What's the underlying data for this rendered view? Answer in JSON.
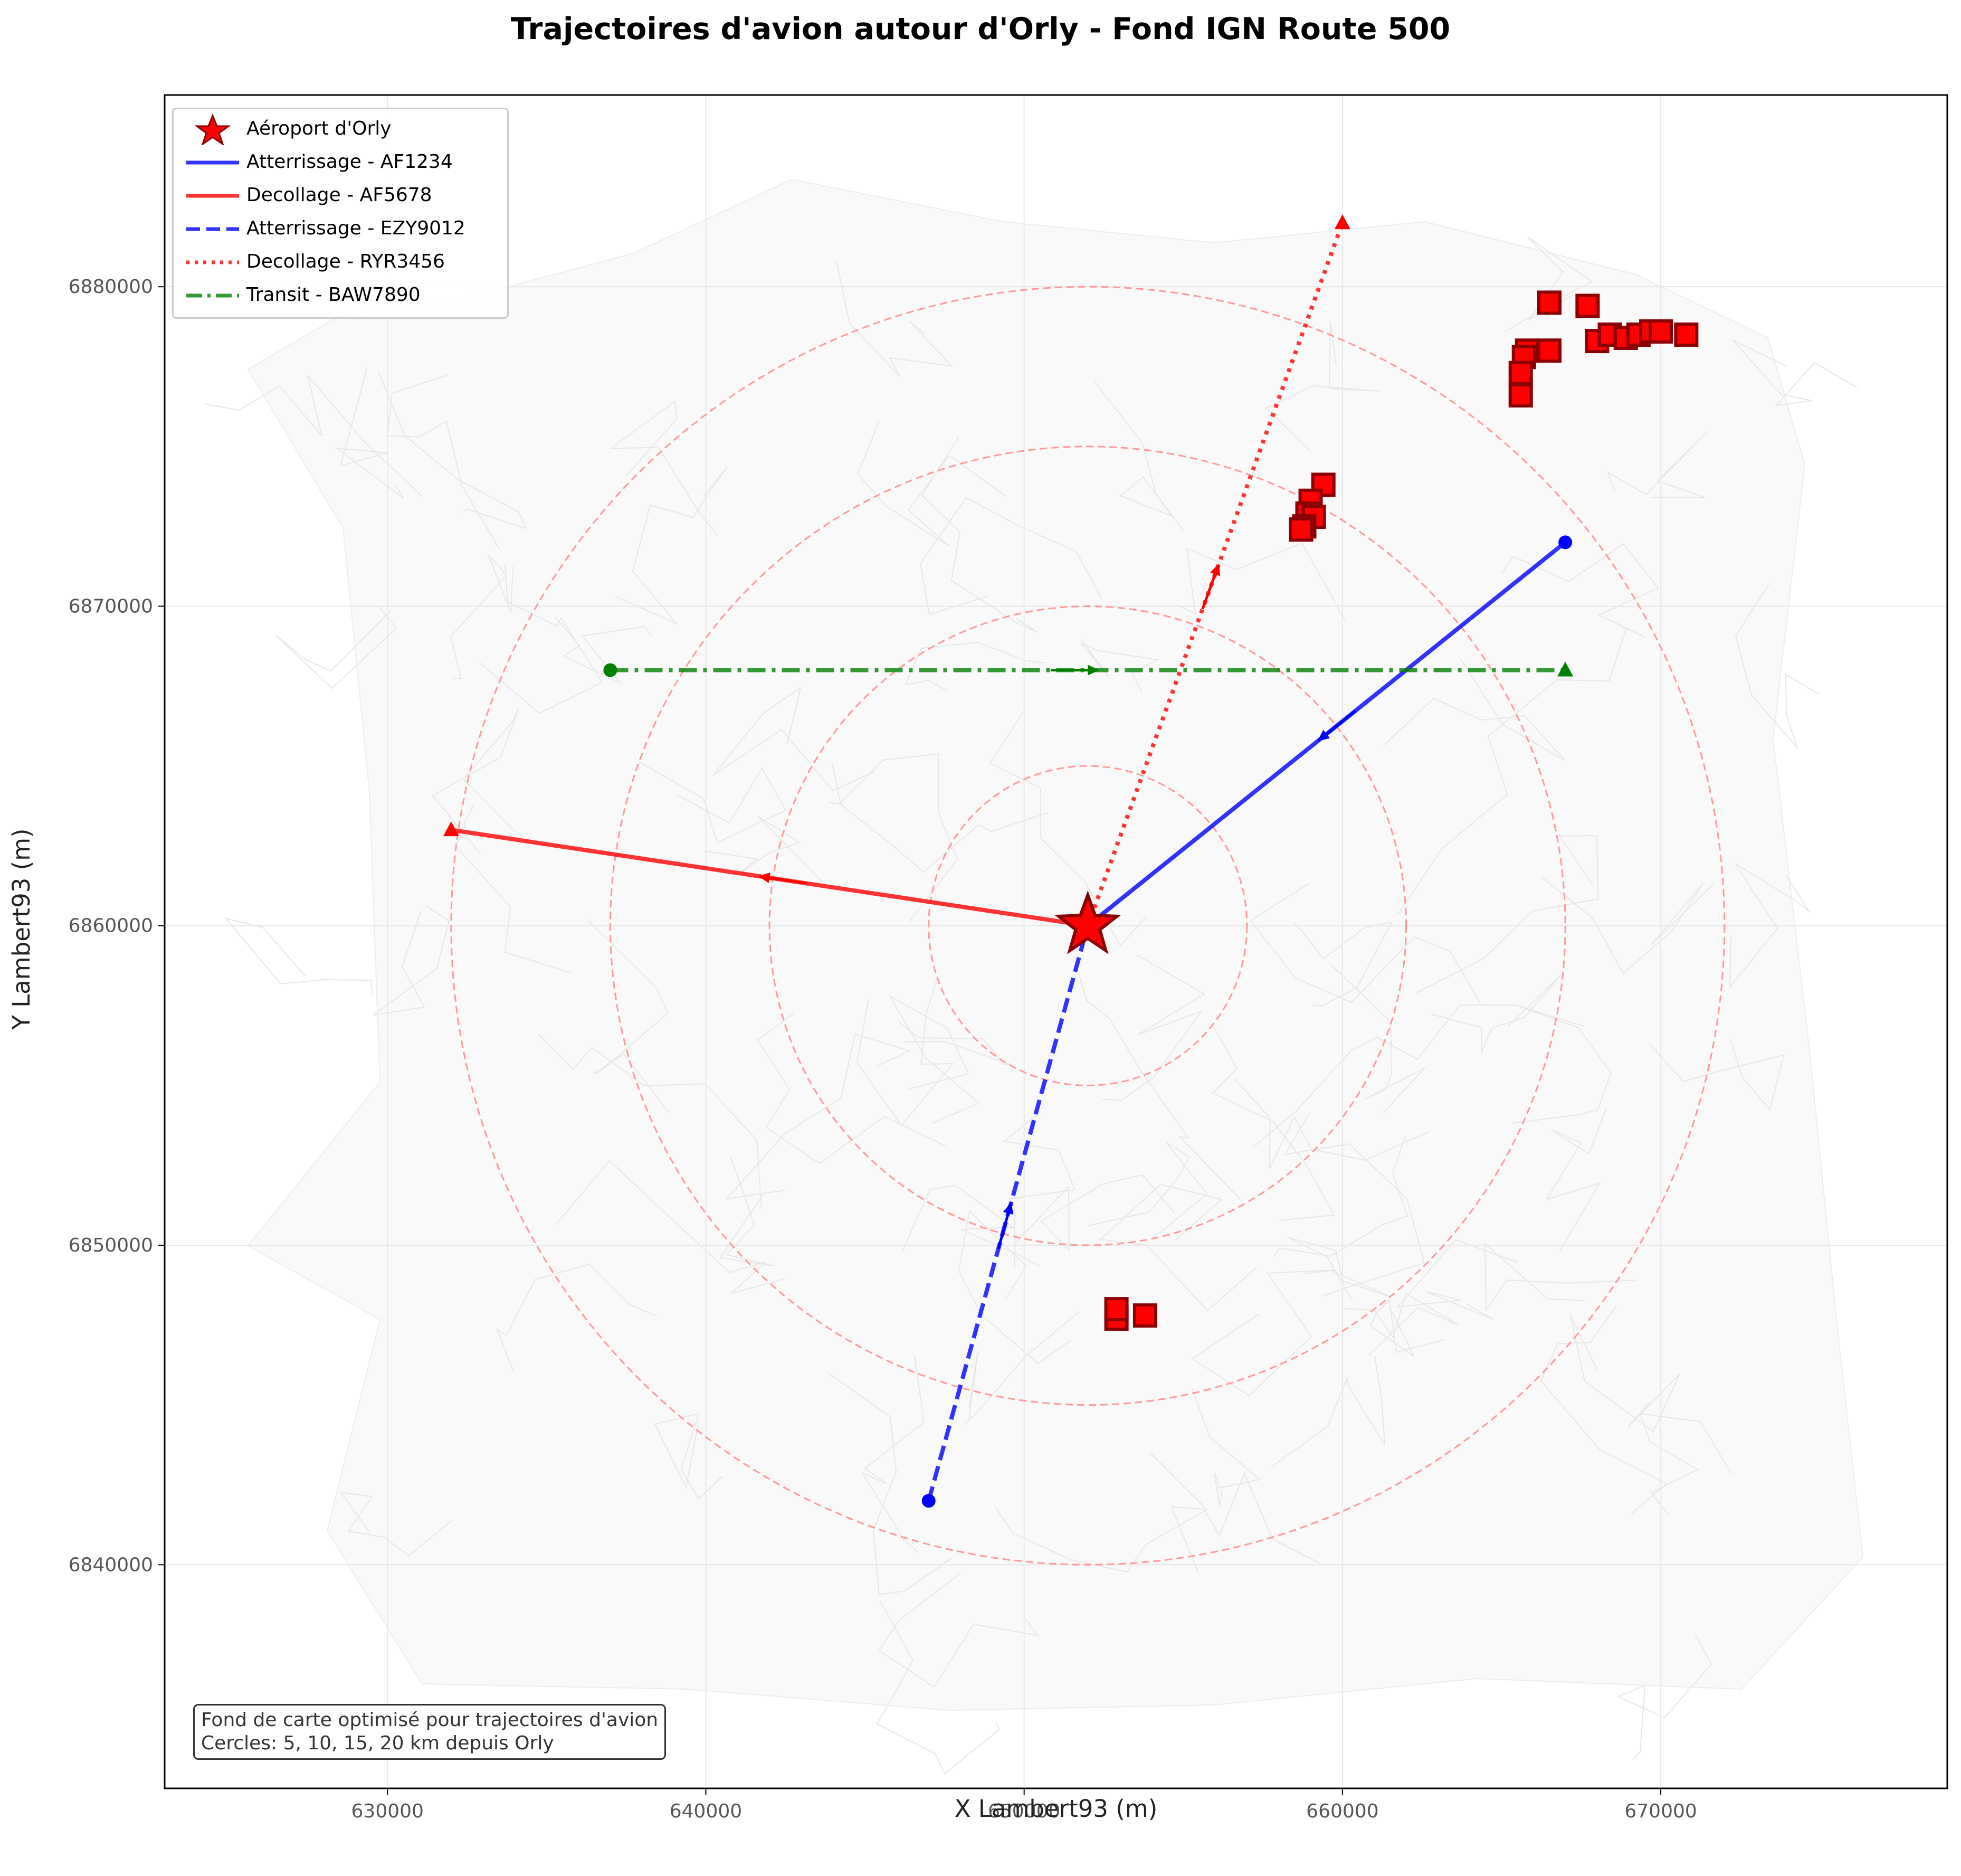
{
  "title": "Trajectoires d'avion autour d'Orly - Fond IGN Route 500",
  "xlabel": "X Lambert93 (m)",
  "ylabel": "Y Lambert93 (m)",
  "note": {
    "line1": "Fond de carte optimisé pour trajectoires d'avion",
    "line2": "Cercles: 5, 10, 15, 20 km depuis Orly"
  },
  "legend": {
    "placement": "upper-left",
    "entries": [
      {
        "label": "Aéroport d'Orly",
        "color": "#ff0000",
        "style": "star"
      },
      {
        "label": "Atterrissage - AF1234",
        "color": "#0000ff",
        "style": "solid"
      },
      {
        "label": "Decollage - AF5678",
        "color": "#ff0000",
        "style": "solid"
      },
      {
        "label": "Atterrissage - EZY9012",
        "color": "#0000ff",
        "style": "dashed"
      },
      {
        "label": "Decollage - RYR3456",
        "color": "#ff0000",
        "style": "dotted"
      },
      {
        "label": "Transit - BAW7890",
        "color": "#008000",
        "style": "dashdot"
      }
    ]
  },
  "chart_data": {
    "type": "scatter",
    "xlim": [
      623000,
      679000
    ],
    "ylim": [
      6833000,
      6886000
    ],
    "xticks": [
      630000,
      640000,
      650000,
      660000,
      670000
    ],
    "yticks": [
      6840000,
      6850000,
      6860000,
      6870000,
      6880000
    ],
    "grid": true,
    "airport": {
      "label": "Aéroport d'Orly",
      "x": 652000,
      "y": 6860000,
      "color": "#ff0000"
    },
    "circles": {
      "center": [
        652000,
        6860000
      ],
      "radii_km": [
        5,
        10,
        15,
        20
      ],
      "color": "#ff9999"
    },
    "trajectories": [
      {
        "name": "Atterrissage - AF1234",
        "color": "#0000ff",
        "style": "solid",
        "start_marker": "circle",
        "points": [
          [
            667000,
            6872000
          ],
          [
            652000,
            6860000
          ]
        ]
      },
      {
        "name": "Decollage - AF5678",
        "color": "#ff0000",
        "style": "solid",
        "end_marker": "triangle",
        "points": [
          [
            652000,
            6860000
          ],
          [
            632000,
            6863000
          ]
        ]
      },
      {
        "name": "Atterrissage - EZY9012",
        "color": "#0000ff",
        "style": "dashed",
        "start_marker": "circle",
        "points": [
          [
            647000,
            6842000
          ],
          [
            652000,
            6860000
          ]
        ]
      },
      {
        "name": "Decollage - RYR3456",
        "color": "#ff0000",
        "style": "dotted",
        "end_marker": "triangle",
        "points": [
          [
            652000,
            6860000
          ],
          [
            660000,
            6882000
          ]
        ]
      },
      {
        "name": "Transit - BAW7890",
        "color": "#008000",
        "style": "dashdot",
        "start_marker": "circle",
        "end_marker": "triangle",
        "points": [
          [
            637000,
            6868000
          ],
          [
            667000,
            6868000
          ]
        ]
      }
    ],
    "square_markers": {
      "color": "#ff0000",
      "points": [
        [
          666500,
          6879500
        ],
        [
          667700,
          6879400
        ],
        [
          666500,
          6878000
        ],
        [
          665800,
          6878000
        ],
        [
          665700,
          6877800
        ],
        [
          665600,
          6877300
        ],
        [
          665600,
          6876600
        ],
        [
          668000,
          6878300
        ],
        [
          668400,
          6878500
        ],
        [
          668900,
          6878400
        ],
        [
          669300,
          6878500
        ],
        [
          669700,
          6878600
        ],
        [
          670000,
          6878600
        ],
        [
          670800,
          6878500
        ],
        [
          659400,
          6873800
        ],
        [
          659000,
          6873300
        ],
        [
          658900,
          6872900
        ],
        [
          659100,
          6872800
        ],
        [
          658800,
          6872500
        ],
        [
          658700,
          6872400
        ],
        [
          652900,
          6847700
        ],
        [
          652900,
          6848000
        ],
        [
          653800,
          6847800
        ]
      ]
    }
  }
}
